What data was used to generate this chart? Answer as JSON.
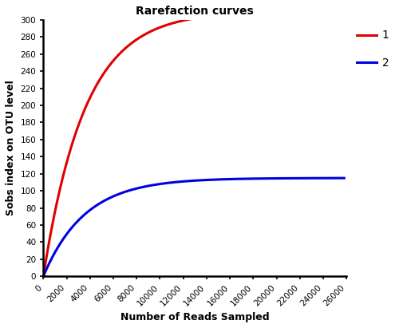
{
  "title": "Rarefaction curves",
  "xlabel": "Number of Reads Sampled",
  "ylabel": "Sobs index on OTU level",
  "xlim": [
    0,
    26000
  ],
  "ylim": [
    0,
    300
  ],
  "xticks": [
    0,
    2000,
    4000,
    6000,
    8000,
    10000,
    12000,
    14000,
    16000,
    18000,
    20000,
    22000,
    24000,
    26000
  ],
  "yticks": [
    0,
    20,
    40,
    60,
    80,
    100,
    120,
    140,
    160,
    180,
    200,
    220,
    240,
    260,
    280,
    300
  ],
  "curve1": {
    "label": "1",
    "color": "#e00000",
    "asymptote": 310,
    "rate": 0.00028,
    "x_max": 25800
  },
  "curve2": {
    "label": "2",
    "color": "#0000e0",
    "asymptote": 115,
    "rate": 0.00028,
    "x_max": 25800
  },
  "title_fontsize": 10,
  "label_fontsize": 9,
  "tick_fontsize": 7.5,
  "line_width": 2.2,
  "background_color": "#ffffff",
  "figwidth": 5.0,
  "figheight": 4.11,
  "dpi": 100
}
